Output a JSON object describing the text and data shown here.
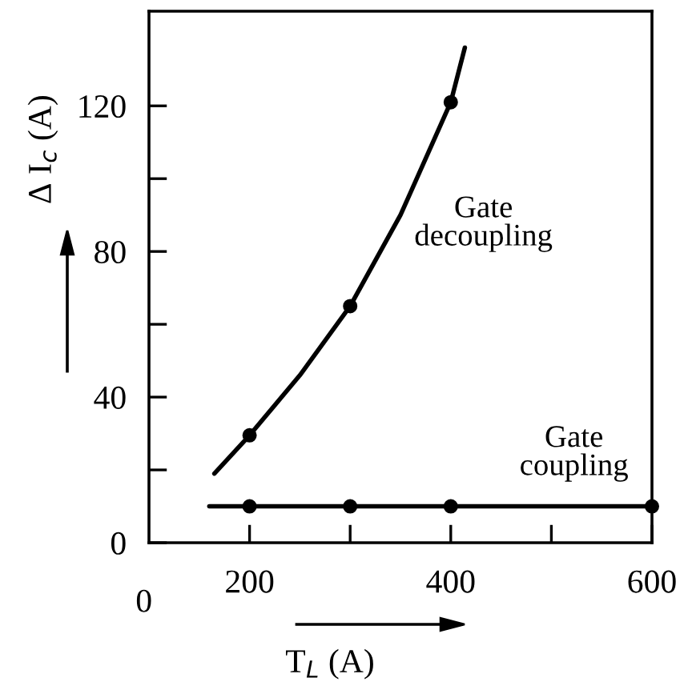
{
  "chart_data": {
    "type": "line",
    "xlabel": "T$_{L}$ (A)",
    "ylabel": "Δ I$_{c}$ (A)",
    "series": [
      {
        "color": "#000000",
        "marker": "none",
        "x": [
          165,
          200,
          250,
          300,
          350,
          400,
          414
        ],
        "values": [
          19,
          29.5,
          46,
          65,
          90,
          121,
          136
        ]
      },
      {
        "type": "scatter",
        "color": "#000000",
        "marker": "circle",
        "x": [
          200,
          300,
          400
        ],
        "values": [
          29.5,
          65,
          121
        ]
      },
      {
        "color": "#000000",
        "marker": "none",
        "x": [
          160,
          600
        ],
        "values": [
          10,
          10
        ]
      },
      {
        "type": "scatter",
        "color": "#000000",
        "marker": "circle",
        "x": [
          200,
          300,
          400,
          600
        ],
        "values": [
          10,
          10,
          10,
          10
        ]
      }
    ],
    "annotations": [
      "Gate\ndecoupling",
      "Gate\ncoupling",
      "0"
    ],
    "xlim": [
      100,
      600
    ],
    "ylim": [
      0,
      146
    ],
    "xticks": [
      200,
      {
        "value": 300,
        "label": null
      },
      400,
      {
        "value": 500,
        "label": null
      },
      600
    ],
    "yticks": [
      0,
      {
        "value": 20,
        "label": null
      },
      40,
      {
        "value": 60,
        "label": null
      },
      80,
      {
        "value": 100,
        "label": null
      },
      120
    ],
    "grid": false,
    "legend": false,
    "line_style": "solid"
  }
}
